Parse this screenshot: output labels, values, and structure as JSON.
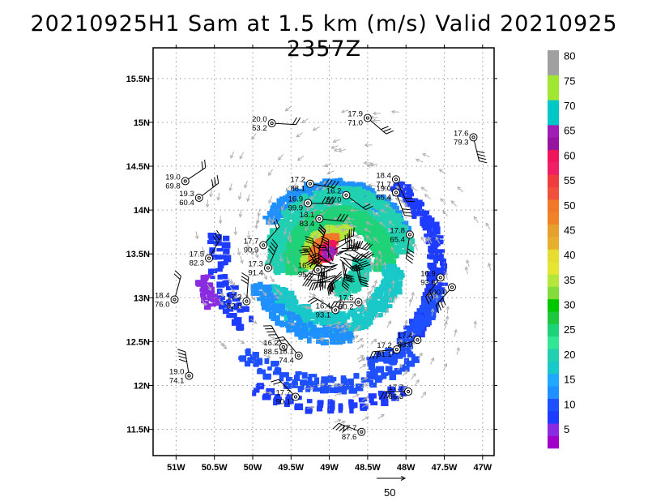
{
  "title": "20210925H1 Sam at 1.5 km (m/s) Valid 20210925 2357Z",
  "map": {
    "lon_range": [
      -51.3,
      -46.85
    ],
    "lat_range": [
      11.2,
      15.85
    ],
    "storm_center": {
      "lon": -48.9,
      "lat": 13.42
    },
    "x_ticks": [
      {
        "value": -51,
        "label": "51W"
      },
      {
        "value": -50.5,
        "label": "50.5W"
      },
      {
        "value": -50,
        "label": "50W"
      },
      {
        "value": -49.5,
        "label": "49.5W"
      },
      {
        "value": -49,
        "label": "49W"
      },
      {
        "value": -48.5,
        "label": "48.5W"
      },
      {
        "value": -48,
        "label": "48W"
      },
      {
        "value": -47.5,
        "label": "47.5W"
      },
      {
        "value": -47,
        "label": "47W"
      }
    ],
    "y_ticks": [
      {
        "value": 11.5,
        "label": "11.5N"
      },
      {
        "value": 12,
        "label": "12N"
      },
      {
        "value": 12.5,
        "label": "12.5N"
      },
      {
        "value": 13,
        "label": "13N"
      },
      {
        "value": 13.5,
        "label": "13.5N"
      },
      {
        "value": 14,
        "label": "14N"
      },
      {
        "value": 14.5,
        "label": "14.5N"
      },
      {
        "value": 15,
        "label": "15N"
      },
      {
        "value": 15.5,
        "label": "15.5N"
      }
    ],
    "grid": true
  },
  "colorbar": {
    "levels": [
      {
        "label": "",
        "color": "#a000c8"
      },
      {
        "label": "5",
        "color": "#8a2be2"
      },
      {
        "label": "",
        "color": "#1e3cff"
      },
      {
        "label": "10",
        "color": "#1e50ff"
      },
      {
        "label": "",
        "color": "#1e90ff"
      },
      {
        "label": "15",
        "color": "#20a8ff"
      },
      {
        "label": "",
        "color": "#19c8c8"
      },
      {
        "label": "20",
        "color": "#20d0b0"
      },
      {
        "label": "",
        "color": "#32e696"
      },
      {
        "label": "25",
        "color": "#1ed278"
      },
      {
        "label": "",
        "color": "#1ec83c"
      },
      {
        "label": "30",
        "color": "#00c800"
      },
      {
        "label": "",
        "color": "#82dc3c"
      },
      {
        "label": "35",
        "color": "#b4e63c"
      },
      {
        "label": "",
        "color": "#e6e632"
      },
      {
        "label": "40",
        "color": "#e6dc32"
      },
      {
        "label": "",
        "color": "#e6af2d"
      },
      {
        "label": "45",
        "color": "#e6a02d"
      },
      {
        "label": "",
        "color": "#f08228"
      },
      {
        "label": "50",
        "color": "#f07828"
      },
      {
        "label": "",
        "color": "#f0503c"
      },
      {
        "label": "55",
        "color": "#f03c3c"
      },
      {
        "label": "",
        "color": "#f01e64"
      },
      {
        "label": "60",
        "color": "#f0145a"
      },
      {
        "label": "",
        "color": "#9614a0"
      },
      {
        "label": "65",
        "color": "#a01eb4"
      },
      {
        "label": "",
        "color": "#00c8c8"
      },
      {
        "label": "70",
        "color": "#00c8c8"
      },
      {
        "label": "",
        "color": "#a0e632"
      },
      {
        "label": "75",
        "color": "#a0e632"
      },
      {
        "label": "",
        "color": "#a0a0a0"
      },
      {
        "label": "80",
        "color": "#a0a0a0"
      }
    ]
  },
  "stations": [
    {
      "t": "20.0",
      "p": "53.2",
      "lon": -49.75,
      "lat": 14.99
    },
    {
      "t": "17.9",
      "p": "71.0",
      "lon": -48.5,
      "lat": 15.05
    },
    {
      "t": "17.6",
      "p": "79.3",
      "lon": -47.12,
      "lat": 14.83
    },
    {
      "t": "19.0",
      "p": "69.8",
      "lon": -50.88,
      "lat": 14.33
    },
    {
      "t": "19.3",
      "p": "60.4",
      "lon": -50.7,
      "lat": 14.14
    },
    {
      "t": "17.2",
      "p": "88.1",
      "lon": -49.25,
      "lat": 14.3
    },
    {
      "t": "18.4",
      "p": "71.7",
      "lon": -48.13,
      "lat": 14.35
    },
    {
      "t": "19.0",
      "p": "65.4",
      "lon": -48.13,
      "lat": 14.2
    },
    {
      "t": "16.9",
      "p": "99.9",
      "lon": -49.28,
      "lat": 14.08
    },
    {
      "t": "16.2",
      "p": "91.0",
      "lon": -48.78,
      "lat": 14.17
    },
    {
      "t": "18.1",
      "p": "83.4",
      "lon": -49.13,
      "lat": 13.9
    },
    {
      "t": "17.8",
      "p": "65.4",
      "lon": -47.95,
      "lat": 13.72
    },
    {
      "t": "17.7",
      "p": "90.9",
      "lon": -49.86,
      "lat": 13.6
    },
    {
      "t": "17.5",
      "p": "82.3",
      "lon": -50.57,
      "lat": 13.45
    },
    {
      "t": "17.3",
      "p": "91.4",
      "lon": -49.8,
      "lat": 13.34
    },
    {
      "t": "16.7",
      "p": "95.2",
      "lon": -49.15,
      "lat": 13.32
    },
    {
      "t": "16.9",
      "p": "93.8",
      "lon": -47.55,
      "lat": 13.23
    },
    {
      "t": "",
      "p": "100.0",
      "lon": -47.4,
      "lat": 13.12
    },
    {
      "t": "18.4",
      "p": "76.0",
      "lon": -51.02,
      "lat": 12.98
    },
    {
      "t": "17.3",
      "p": "92.6",
      "lon": -50.08,
      "lat": 12.96
    },
    {
      "t": "17.5",
      "p": "80.2",
      "lon": -48.62,
      "lat": 12.95
    },
    {
      "t": "16.4",
      "p": "93.1",
      "lon": -48.92,
      "lat": 12.86
    },
    {
      "t": "17.4",
      "p": "83.0",
      "lon": -47.85,
      "lat": 12.52
    },
    {
      "t": "16.2",
      "p": "88.5",
      "lon": -49.6,
      "lat": 12.44
    },
    {
      "t": "18.1",
      "p": "74.4",
      "lon": -49.4,
      "lat": 12.34
    },
    {
      "t": "17.2",
      "p": "91.1",
      "lon": -48.12,
      "lat": 12.41
    },
    {
      "t": "19.0",
      "p": "74.1",
      "lon": -50.83,
      "lat": 12.11
    },
    {
      "t": "17.7",
      "p": "90.1",
      "lon": -49.44,
      "lat": 11.87
    },
    {
      "t": "17.7",
      "p": "86.3",
      "lon": -47.97,
      "lat": 11.93
    },
    {
      "t": "17.7",
      "p": "87.6",
      "lon": -48.58,
      "lat": 11.47
    }
  ],
  "reference_vector": {
    "label": "50"
  }
}
